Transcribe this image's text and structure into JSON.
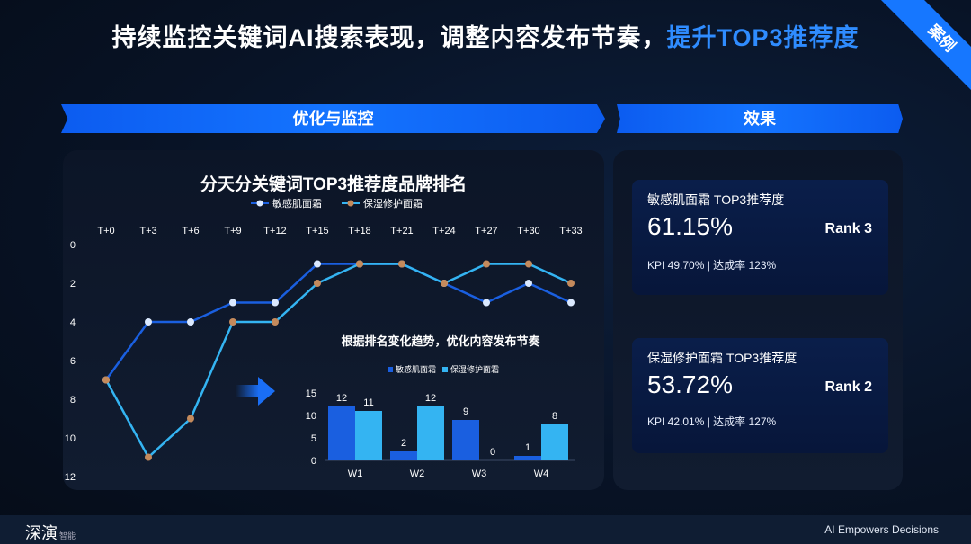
{
  "header": {
    "title_part1": "持续监控关键词AI搜索表现，调整内容发布节奏，",
    "title_part2": "提升TOP3推荐度",
    "corner_badge": "案例"
  },
  "sections": {
    "left_banner": "优化与监控",
    "right_banner": "效果"
  },
  "results": [
    {
      "name": "敏感肌面霜 TOP3推荐度",
      "percent": "61.15%",
      "rank": "Rank 3",
      "kpi": "KPI 49.70% | 达成率 123%"
    },
    {
      "name": "保湿修护面霜 TOP3推荐度",
      "percent": "53.72%",
      "rank": "Rank 2",
      "kpi": "KPI 42.01% | 达成率 127%"
    }
  ],
  "footer": {
    "logo": "深演",
    "logo_sub": "智能",
    "tagline": "AI Empowers Decisions"
  },
  "colors": {
    "series_dark": "#1a5fe0",
    "series_light": "#34b4f2",
    "accent": "#1677ff"
  },
  "chart_data": [
    {
      "type": "line",
      "title": "分天分关键词TOP3推荐度品牌排名",
      "categories": [
        "T+0",
        "T+3",
        "T+6",
        "T+9",
        "T+12",
        "T+15",
        "T+18",
        "T+21",
        "T+24",
        "T+27",
        "T+30",
        "T+33"
      ],
      "yticks": [
        0,
        2,
        4,
        6,
        8,
        10,
        12
      ],
      "ylim": [
        0,
        12
      ],
      "y_inverted": true,
      "legend": "top-center",
      "series": [
        {
          "name": "敏感肌面霜",
          "values": [
            7,
            4,
            4,
            3,
            3,
            1,
            1,
            1,
            2,
            3,
            2,
            3
          ]
        },
        {
          "name": "保湿修护面霜",
          "values": [
            7,
            11,
            9,
            4,
            4,
            2,
            1,
            1,
            2,
            1,
            1,
            2
          ]
        }
      ]
    },
    {
      "type": "bar",
      "title": "根据排名变化趋势，优化内容发布节奏",
      "categories": [
        "W1",
        "W2",
        "W3",
        "W4"
      ],
      "yticks": [
        0,
        5,
        10,
        15
      ],
      "ylim": [
        0,
        15
      ],
      "legend": "top",
      "series": [
        {
          "name": "敏感肌面霜",
          "values": [
            12,
            2,
            9,
            1
          ]
        },
        {
          "name": "保湿修护面霜",
          "values": [
            11,
            12,
            0,
            8
          ]
        }
      ]
    }
  ]
}
